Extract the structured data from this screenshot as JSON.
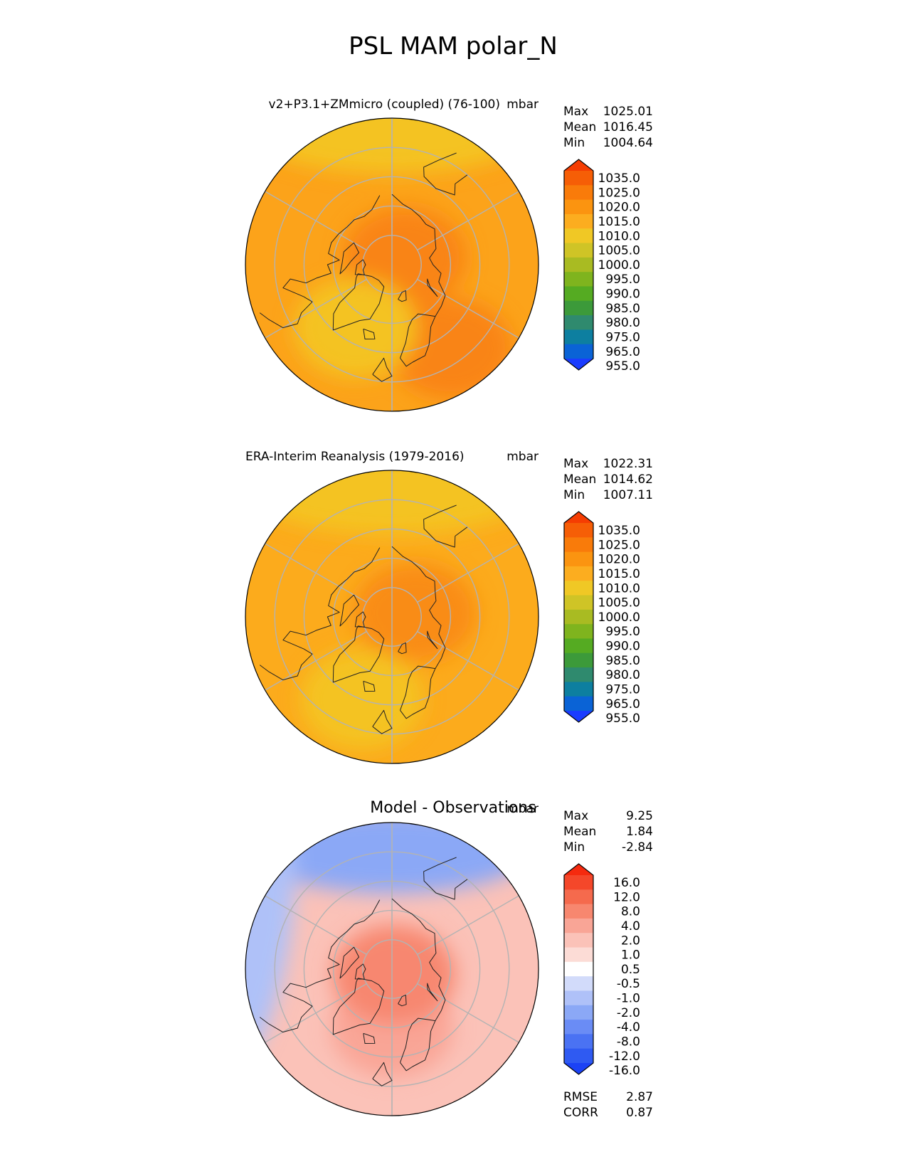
{
  "figure": {
    "title": "PSL MAM polar_N"
  },
  "colors": {
    "abs_levels": [
      "#1a3cff",
      "#0a63d6",
      "#0d7fa0",
      "#2f8a6e",
      "#3c9a3a",
      "#55ab22",
      "#7fb41e",
      "#a9bb22",
      "#cfc426",
      "#f0c825",
      "#fcad1f",
      "#fb9410",
      "#f97b0a",
      "#f65e06",
      "#f53d02"
    ],
    "diff_levels": [
      "#1b42f5",
      "#2f5af2",
      "#4a72f3",
      "#6a8cf5",
      "#8ba8f6",
      "#afc1f8",
      "#d2dbfa",
      "#ffffff",
      "#fcdcd6",
      "#fbc2b8",
      "#f9a596",
      "#f7876f",
      "#f56a4d",
      "#f4472a",
      "#f52a0e"
    ],
    "grid": "#b3b3b3",
    "coast": "#222222"
  },
  "chart_data": [
    {
      "type": "heatmap",
      "projection": "north polar stereographic",
      "title": "v2+P3.1+ZMmicro (coupled) (76-100)",
      "units": "mbar",
      "stats": {
        "Max": "1025.01",
        "Mean": "1016.45",
        "Min": "1004.64"
      },
      "colorbar_ticks": [
        "1035.0",
        "1025.0",
        "1020.0",
        "1015.0",
        "1010.0",
        "1005.0",
        "1000.0",
        "995.0",
        "990.0",
        "985.0",
        "980.0",
        "975.0",
        "965.0",
        "955.0"
      ],
      "field": {
        "base": "#fca31a",
        "features": [
          {
            "lon": 180,
            "lat": 45,
            "shape": "band",
            "value": "1010",
            "color": "#f4c322"
          },
          {
            "lon": 120,
            "lat": 85,
            "shape": "blob",
            "value": "1020",
            "color": "#f98412"
          },
          {
            "lon": 35,
            "lat": 55,
            "shape": "blob",
            "value": "1020",
            "color": "#f98412"
          },
          {
            "lon": -30,
            "lat": 65,
            "shape": "blob",
            "value": "1010",
            "color": "#f4c322"
          }
        ]
      }
    },
    {
      "type": "heatmap",
      "projection": "north polar stereographic",
      "title": "ERA-Interim Reanalysis (1979-2016)",
      "units": "mbar",
      "stats": {
        "Max": "1022.31",
        "Mean": "1014.62",
        "Min": "1007.11"
      },
      "colorbar_ticks": [
        "1035.0",
        "1025.0",
        "1020.0",
        "1015.0",
        "1010.0",
        "1005.0",
        "1000.0",
        "995.0",
        "990.0",
        "985.0",
        "980.0",
        "975.0",
        "965.0",
        "955.0"
      ],
      "field": {
        "base": "#fcab1c",
        "features": [
          {
            "lon": 180,
            "lat": 48,
            "shape": "band",
            "value": "1010",
            "color": "#f4c322"
          },
          {
            "lon": 100,
            "lat": 82,
            "shape": "blob",
            "value": "1020",
            "color": "#f98c14"
          },
          {
            "lon": -20,
            "lat": 60,
            "shape": "blob",
            "value": "1010",
            "color": "#f4c322"
          }
        ]
      }
    },
    {
      "type": "heatmap",
      "projection": "north polar stereographic",
      "title": "Model - Observations",
      "units": "mbar",
      "stats": {
        "Max": "9.25",
        "Mean": "1.84",
        "Min": "-2.84"
      },
      "colorbar_ticks": [
        "16.0",
        "12.0",
        "8.0",
        "4.0",
        "2.0",
        "1.0",
        "0.5",
        "-0.5",
        "-1.0",
        "-2.0",
        "-4.0",
        "-8.0",
        "-12.0",
        "-16.0"
      ],
      "metrics": {
        "RMSE": "2.87",
        "CORR": "0.87"
      },
      "field": {
        "base": "#fbc2b8",
        "features": [
          {
            "lon": 180,
            "lat": 50,
            "shape": "band",
            "value": "-2.0",
            "color": "#8ba8f6"
          },
          {
            "lon": -100,
            "lat": 40,
            "shape": "band",
            "value": "-1.0",
            "color": "#afc1f8"
          },
          {
            "lon": 0,
            "lat": 70,
            "shape": "blob",
            "value": "4.0",
            "color": "#f9a596"
          },
          {
            "lon": 20,
            "lat": 88,
            "shape": "blob",
            "value": "8.0",
            "color": "#f7876f"
          }
        ]
      }
    }
  ]
}
